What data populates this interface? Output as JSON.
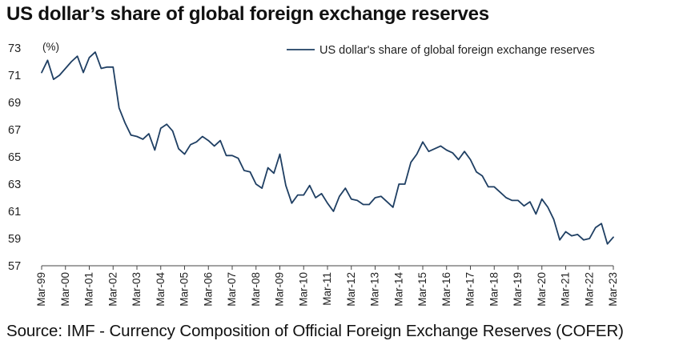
{
  "title": "US dollar’s share of global foreign exchange reserves",
  "source": "Source: IMF - Currency Composition of Official Foreign Exchange Reserves (COFER)",
  "colors": {
    "line": "#1f3f63",
    "axis": "#444444",
    "text": "#222222"
  },
  "chart_data": {
    "type": "line",
    "title": "US dollar’s share of global foreign exchange reserves",
    "unit_label": "(%)",
    "xlabel": "",
    "ylabel": "",
    "ylim": [
      57,
      73
    ],
    "yticks": [
      57,
      59,
      61,
      63,
      65,
      67,
      69,
      71,
      73
    ],
    "grid": false,
    "legend_position": "top-right",
    "x_tick_labels": [
      "Mar-99",
      "Mar-00",
      "Mar-01",
      "Mar-02",
      "Mar-03",
      "Mar-04",
      "Mar-05",
      "Mar-06",
      "Mar-07",
      "Mar-08",
      "Mar-09",
      "Mar-10",
      "Mar-11",
      "Mar-12",
      "Mar-13",
      "Mar-14",
      "Mar-15",
      "Mar-16",
      "Mar-17",
      "Mar-18",
      "Mar-19",
      "Mar-20",
      "Mar-21",
      "Mar-22",
      "Mar-23"
    ],
    "series": [
      {
        "name": "US dollar's share of global foreign exchange reserves",
        "frequency": "quarterly",
        "start": "Mar-99",
        "end": "Mar-23",
        "values": [
          71.2,
          72.1,
          70.7,
          71.0,
          71.5,
          72.0,
          72.4,
          71.2,
          72.3,
          72.7,
          71.5,
          71.6,
          71.6,
          68.6,
          67.5,
          66.6,
          66.5,
          66.3,
          66.7,
          65.5,
          67.1,
          67.4,
          66.9,
          65.6,
          65.2,
          65.9,
          66.1,
          66.5,
          66.2,
          65.8,
          66.2,
          65.1,
          65.1,
          64.9,
          64.0,
          63.9,
          63.0,
          62.7,
          64.2,
          63.8,
          65.2,
          62.9,
          61.6,
          62.2,
          62.2,
          62.9,
          62.0,
          62.3,
          61.6,
          61.0,
          62.1,
          62.7,
          61.9,
          61.8,
          61.5,
          61.5,
          62.0,
          62.1,
          61.7,
          61.3,
          63.0,
          63.0,
          64.6,
          65.2,
          66.1,
          65.4,
          65.6,
          65.8,
          65.5,
          65.3,
          64.8,
          65.4,
          64.8,
          63.9,
          63.6,
          62.8,
          62.8,
          62.4,
          62.0,
          61.8,
          61.8,
          61.4,
          61.7,
          60.8,
          61.9,
          61.3,
          60.4,
          58.9,
          59.5,
          59.2,
          59.3,
          58.9,
          59.0,
          59.8,
          60.1,
          58.6,
          59.1
        ]
      }
    ]
  }
}
